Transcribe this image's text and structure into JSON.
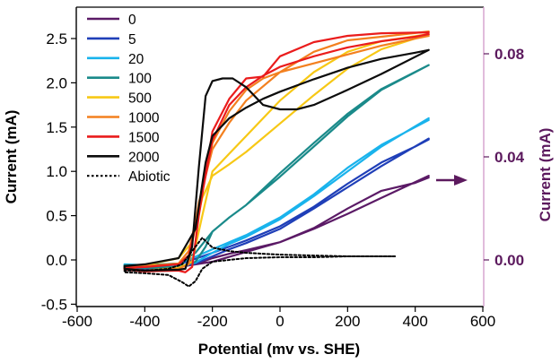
{
  "chart_data": {
    "type": "line",
    "title": "",
    "xlabel": "Potential (mv vs. SHE)",
    "ylabel": "Current (mA)",
    "y2label": "Current (mA)",
    "xlim": [
      -600,
      600
    ],
    "ylim": [
      -0.5,
      2.75
    ],
    "y2lim": [
      -0.0149,
      0.0938
    ],
    "x_ticks": [
      -600,
      -400,
      -200,
      0,
      200,
      400,
      600
    ],
    "y_ticks": [
      -0.5,
      0.0,
      0.5,
      1.0,
      1.5,
      2.0,
      2.5
    ],
    "y_tick_labels": [
      "-0.5",
      "0.0",
      "0.5",
      "1.0",
      "1.5",
      "2.0",
      "2.5"
    ],
    "y2_ticks": [
      0.0,
      0.04,
      0.08
    ],
    "y2_tick_labels": [
      "0.00",
      "0.04",
      "0.08"
    ],
    "right_axis_color": "#5c1a5e",
    "right_axis_line_color": "#d4a0cc",
    "arrow_color": "#5c1a5e",
    "legend_position": "top-left",
    "series": [
      {
        "name": "0",
        "color": "#5b1a66",
        "axis": "y",
        "x": [
          440,
          400,
          300,
          200,
          100,
          0,
          -100,
          -200,
          -300,
          -400,
          -460,
          -460,
          -400,
          -300,
          -250,
          -200,
          -150,
          -100,
          0,
          100,
          200,
          300,
          440
        ],
        "y": [
          0.93,
          0.87,
          0.78,
          0.58,
          0.36,
          0.2,
          0.09,
          -0.02,
          -0.08,
          -0.09,
          -0.07,
          -0.1,
          -0.11,
          -0.08,
          -0.05,
          0.02,
          0.07,
          0.11,
          0.2,
          0.35,
          0.52,
          0.7,
          0.95
        ]
      },
      {
        "name": "5",
        "color": "#1f3fb8",
        "axis": "y",
        "x": [
          440,
          400,
          300,
          200,
          100,
          0,
          -100,
          -200,
          -260,
          -300,
          -400,
          -460,
          -460,
          -400,
          -300,
          -250,
          -200,
          -150,
          -100,
          0,
          100,
          200,
          300,
          440
        ],
        "y": [
          1.36,
          1.28,
          1.1,
          0.86,
          0.6,
          0.38,
          0.22,
          0.08,
          0.0,
          -0.05,
          -0.08,
          -0.07,
          -0.09,
          -0.1,
          -0.08,
          -0.04,
          0.04,
          0.12,
          0.19,
          0.35,
          0.58,
          0.82,
          1.06,
          1.37
        ]
      },
      {
        "name": "20",
        "color": "#19b3ec",
        "axis": "y",
        "x": [
          440,
          400,
          300,
          200,
          100,
          0,
          -100,
          -200,
          -260,
          -300,
          -400,
          -460,
          -460,
          -400,
          -300,
          -250,
          -200,
          -150,
          -100,
          0,
          100,
          200,
          300,
          440
        ],
        "y": [
          1.58,
          1.5,
          1.3,
          1.04,
          0.74,
          0.48,
          0.28,
          0.12,
          0.02,
          -0.04,
          -0.06,
          -0.05,
          -0.07,
          -0.08,
          -0.07,
          -0.03,
          0.08,
          0.18,
          0.26,
          0.46,
          0.72,
          1.0,
          1.28,
          1.6
        ]
      },
      {
        "name": "100",
        "color": "#1a8a8a",
        "axis": "y",
        "x": [
          440,
          400,
          300,
          200,
          100,
          0,
          -100,
          -150,
          -200,
          -250,
          -300,
          -400,
          -460,
          -460,
          -400,
          -300,
          -250,
          -220,
          -200,
          -150,
          -100,
          0,
          100,
          200,
          300,
          440
        ],
        "y": [
          2.2,
          2.12,
          1.92,
          1.62,
          1.28,
          0.94,
          0.62,
          0.48,
          0.32,
          0.08,
          -0.04,
          -0.06,
          -0.06,
          -0.08,
          -0.09,
          -0.08,
          -0.02,
          0.15,
          0.32,
          0.48,
          0.62,
          0.98,
          1.32,
          1.65,
          1.93,
          2.2
        ]
      },
      {
        "name": "500",
        "color": "#f7c815",
        "axis": "y",
        "x": [
          440,
          400,
          300,
          200,
          100,
          0,
          -100,
          -150,
          -200,
          -230,
          -260,
          -300,
          -400,
          -460,
          -460,
          -400,
          -300,
          -260,
          -230,
          -200,
          -150,
          -100,
          0,
          100,
          200,
          300,
          440
        ],
        "y": [
          2.55,
          2.5,
          2.38,
          2.16,
          1.86,
          1.54,
          1.22,
          1.08,
          0.95,
          0.7,
          0.2,
          0.02,
          -0.06,
          -0.08,
          -0.1,
          -0.12,
          -0.09,
          -0.02,
          0.5,
          1.0,
          1.2,
          1.4,
          1.8,
          2.12,
          2.35,
          2.47,
          2.55
        ]
      },
      {
        "name": "1000",
        "color": "#f3801f",
        "axis": "y",
        "x": [
          440,
          400,
          300,
          200,
          100,
          0,
          -50,
          -100,
          -150,
          -200,
          -240,
          -270,
          -300,
          -400,
          -460,
          -460,
          -400,
          -300,
          -270,
          -240,
          -200,
          -150,
          -100,
          0,
          100,
          200,
          300,
          440
        ],
        "y": [
          2.53,
          2.5,
          2.42,
          2.32,
          2.22,
          2.12,
          2.05,
          1.92,
          1.68,
          1.32,
          0.6,
          0.1,
          -0.04,
          -0.07,
          -0.08,
          -0.1,
          -0.12,
          -0.1,
          -0.05,
          0.65,
          1.25,
          1.55,
          1.8,
          2.12,
          2.35,
          2.48,
          2.52,
          2.58
        ]
      },
      {
        "name": "1500",
        "color": "#ea1c1c",
        "axis": "y",
        "x": [
          440,
          400,
          300,
          200,
          100,
          0,
          -50,
          -100,
          -150,
          -200,
          -240,
          -270,
          -300,
          -400,
          -460,
          -460,
          -400,
          -300,
          -280,
          -260,
          -240,
          -200,
          -150,
          -100,
          -50,
          0,
          100,
          200,
          300,
          440
        ],
        "y": [
          2.55,
          2.52,
          2.47,
          2.4,
          2.3,
          2.18,
          2.08,
          1.95,
          1.75,
          1.35,
          0.55,
          0.05,
          -0.05,
          -0.08,
          -0.09,
          -0.11,
          -0.13,
          -0.12,
          -0.14,
          -0.08,
          0.5,
          1.45,
          1.82,
          2.05,
          2.07,
          2.3,
          2.46,
          2.53,
          2.56,
          2.57
        ]
      },
      {
        "name": "2000",
        "color": "#0c0c0c",
        "axis": "y",
        "x": [
          440,
          400,
          300,
          200,
          100,
          0,
          -50,
          -100,
          -150,
          -200,
          -220,
          -250,
          -300,
          -400,
          -460,
          -460,
          -400,
          -300,
          -280,
          -260,
          -240,
          -220,
          -200,
          -170,
          -140,
          -100,
          -50,
          0,
          50,
          100,
          200,
          300,
          440
        ],
        "y": [
          2.37,
          2.34,
          2.27,
          2.17,
          2.04,
          1.9,
          1.82,
          1.72,
          1.6,
          1.4,
          1.1,
          0.35,
          0.02,
          -0.05,
          -0.07,
          -0.1,
          -0.12,
          -0.11,
          -0.1,
          0.15,
          1.05,
          1.85,
          2.02,
          2.05,
          2.05,
          1.95,
          1.75,
          1.7,
          1.7,
          1.75,
          1.92,
          2.1,
          2.37
        ]
      },
      {
        "name": "Abiotic",
        "color": "#000000",
        "axis": "y",
        "dash": true,
        "x": [
          340,
          300,
          200,
          100,
          0,
          -100,
          -150,
          -200,
          -230,
          -260,
          -290,
          -330,
          -400,
          -460,
          -460,
          -400,
          -330,
          -290,
          -270,
          -250,
          -230,
          -200,
          -150,
          -100,
          0,
          100,
          200,
          300,
          340
        ],
        "y": [
          0.04,
          0.04,
          0.04,
          0.05,
          0.06,
          0.08,
          0.1,
          0.14,
          0.25,
          0.1,
          -0.05,
          -0.1,
          -0.12,
          -0.12,
          -0.14,
          -0.15,
          -0.17,
          -0.25,
          -0.3,
          -0.24,
          -0.1,
          -0.02,
          0.0,
          0.02,
          0.03,
          0.03,
          0.04,
          0.04,
          0.04
        ]
      }
    ]
  }
}
